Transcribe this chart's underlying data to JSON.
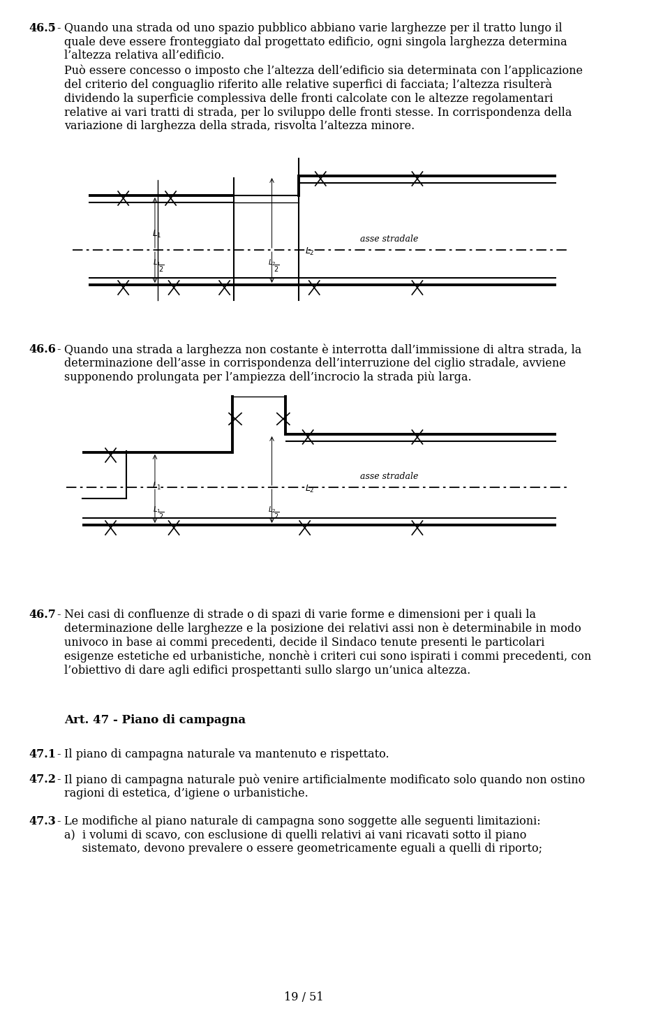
{
  "bg_color": "#ffffff",
  "text_color": "#000000",
  "page_number": "19 / 51",
  "font_size_body": 11.5,
  "font_size_label": 10,
  "font_size_section_bold": 12,
  "section_465_header": "46.5",
  "section_465_text1": "Quando una strada od uno spazio pubblico abbiano varie larghezze per il tratto lungo il\nquale deve essere fronteggiato dal progettato edificio, ogni singola larghezza determina\nl’altezza relativa all’edificio.",
  "section_465_text2": "Può essere concesso o imposto che l’altezza dell’edificio sia determinata con l’applicazione\ndel criterio del conguaglio riferito alle relative superfici di facciata; l’altezza risulterà\ndividendo la superficie complessiva delle fronti calcolate con le altezze regolamentari\nrelative ai vari tratti di strada, per lo sviluppo delle fronti stesse. In corrispondenza della\nvariazione di larghezza della strada, risvolta l’altezza minore.",
  "section_466_header": "46.6",
  "section_466_text": "Quando una strada a larghezza non costante è interrotta dall’immissione di altra strada, la\ndeterminazione dell’asse in corrispondenza dell’interruzione del ciglio stradale, avviene\nsupponendo prolungata per l’ampiezza dell’incrocio la strada più larga.",
  "section_467_header": "46.7",
  "section_467_text": "Nei casi di confluenze di strade o di spazi di varie forme e dimensioni per i quali la\ndeterminazione delle larghezze e la posizione dei relativi assi non è determinabile in modo\nunivoco in base ai commi precedenti, decide il Sindaco tenute presenti le particolari\nesigenze estetiche ed urbanistiche, nonchè i criteri cui sono ispirati i commi precedenti, con\nl’obiettivo di dare agli edifici prospettanti sullo slargo un’unica altezza.",
  "art47_header": "Art. 47 - Piano di campagna",
  "section_471_header": "47.1",
  "section_471_text": "Il piano di campagna naturale va mantenuto e rispettato.",
  "section_472_header": "47.2",
  "section_472_text": "Il piano di campagna naturale può venire artificialmente modificato solo quando non ostino\nragioni di estetica, d’igiene o urbanistiche.",
  "section_473_header": "47.3",
  "section_473_text": "Le modifiche al piano naturale di campagna sono soggette alle seguenti limitazioni:\na)  i volumi di scavo, con esclusione di quelli relativi ai vani ricavati sotto il piano\n     sistemato, devono prevalere o essere geometricamente eguali a quelli di riporto;"
}
